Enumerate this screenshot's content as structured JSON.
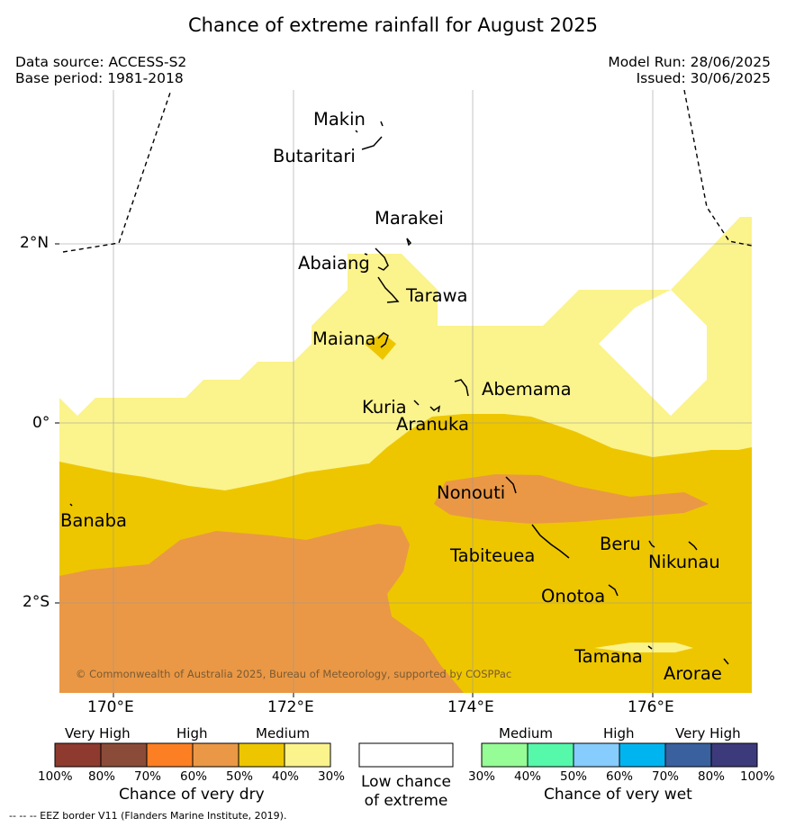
{
  "title": "Chance of extreme rainfall for August 2025",
  "meta": {
    "data_source": "Data source: ACCESS-S2",
    "base_period": "Base period: 1981-2018",
    "model_run": "Model Run: 28/06/2025",
    "issued": "Issued: 30/06/2025"
  },
  "map": {
    "x_ticks": [
      "170°E",
      "172°E",
      "174°E",
      "176°E"
    ],
    "y_ticks": [
      "2°N",
      "0°",
      "2°S"
    ],
    "places": {
      "makin": "Makin",
      "butaritari": "Butaritari",
      "marakei": "Marakei",
      "abaiang": "Abaiang",
      "tarawa": "Tarawa",
      "maiana": "Maiana",
      "abemama": "Abemama",
      "kuria": "Kuria",
      "aranuka": "Aranuka",
      "nonouti": "Nonouti",
      "banaba": "Banaba",
      "tabiteuea": "Tabiteuea",
      "beru": "Beru",
      "nikunau": "Nikunau",
      "onotoa": "Onotoa",
      "tamana": "Tamana",
      "arorae": "Arorae"
    },
    "copyright": "© Commonwealth of Australia 2025, Bureau of Meteorology, supported by COSPPac",
    "colors": {
      "dry_medium_light": "#fbf38c",
      "dry_medium": "#edc600",
      "dry_high": "#ea9846"
    }
  },
  "legend": {
    "dry": {
      "headers": [
        "Very High",
        "High",
        "Medium"
      ],
      "colors": [
        "#8e3a2e",
        "#8a4c38",
        "#fd7f24",
        "#ea9846",
        "#edc600",
        "#fbf38c"
      ],
      "ticks": [
        "100%",
        "80%",
        "70%",
        "60%",
        "50%",
        "40%",
        "30%"
      ],
      "title": "Chance of very dry"
    },
    "low": {
      "line1": "Low chance",
      "line2": "of extreme"
    },
    "wet": {
      "headers": [
        "Medium",
        "High",
        "Very High"
      ],
      "colors": [
        "#96fc96",
        "#56f8aa",
        "#86ccfc",
        "#00b4f0",
        "#3a619e",
        "#3c3a7a"
      ],
      "ticks": [
        "30%",
        "40%",
        "50%",
        "60%",
        "70%",
        "80%",
        "100%"
      ],
      "title": "Chance of very wet"
    }
  },
  "footer_note": "--  --  -- EEZ border V11 (Flanders Marine Institute, 2019)."
}
